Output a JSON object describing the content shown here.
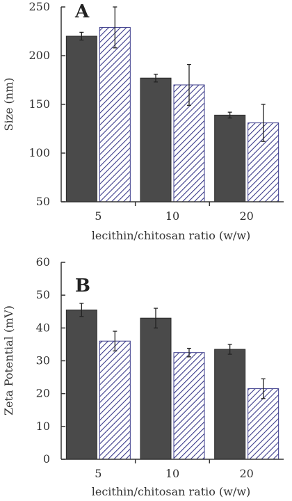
{
  "chart_data": [
    {
      "type": "bar",
      "panel": "A",
      "categories": [
        "5",
        "10",
        "20"
      ],
      "series": [
        {
          "values": [
            220,
            177,
            139
          ],
          "errors": [
            4,
            4,
            3
          ],
          "style": "solid",
          "color": "#4a4a4a"
        },
        {
          "values": [
            229,
            170,
            131
          ],
          "errors": [
            21,
            21,
            19
          ],
          "style": "hatched",
          "color": "#3a3a8a"
        }
      ],
      "xlabel": "lecithin/chitosan  ratio  (w/w)",
      "ylabel": "Size  (nm)",
      "ylim": [
        50,
        250
      ],
      "yticks": [
        "50",
        "100",
        "150",
        "200",
        "250"
      ],
      "grid": false
    },
    {
      "type": "bar",
      "panel": "B",
      "categories": [
        "5",
        "10",
        "20"
      ],
      "series": [
        {
          "values": [
            45.5,
            43,
            33.5
          ],
          "errors": [
            2,
            3,
            1.5
          ],
          "style": "solid",
          "color": "#4a4a4a"
        },
        {
          "values": [
            36,
            32.5,
            21.5
          ],
          "errors": [
            3,
            1.3,
            3
          ],
          "style": "hatched",
          "color": "#3a3a8a"
        }
      ],
      "xlabel": "lecithin/chitosan  ratio  (w/w)",
      "ylabel": "Zeta Potential  (mV)",
      "ylim": [
        0,
        60
      ],
      "yticks": [
        "0",
        "10",
        "20",
        "30",
        "40",
        "50",
        "60"
      ],
      "grid": false
    }
  ]
}
